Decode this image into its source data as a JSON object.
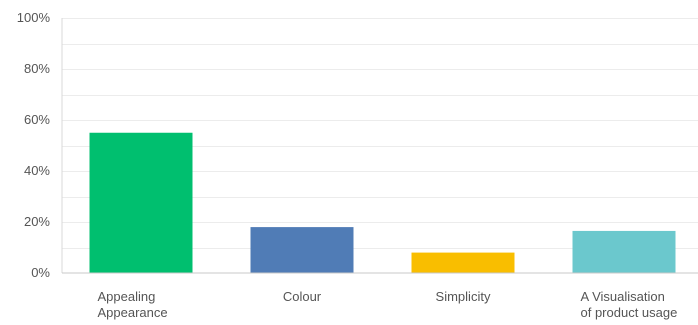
{
  "chart_data": {
    "type": "bar",
    "categories": [
      [
        "Appealing",
        "Appearance"
      ],
      [
        "Colour"
      ],
      [
        "Simplicity"
      ],
      [
        "A Visualisation",
        "of product usage"
      ]
    ],
    "values": [
      55,
      18,
      8,
      16.5
    ],
    "colors": [
      "#00bf6f",
      "#507cb6",
      "#f9be00",
      "#6bc8cd"
    ],
    "ylim": [
      0,
      100
    ],
    "yticks": [
      0,
      20,
      40,
      60,
      80,
      100
    ],
    "ytick_labels": [
      "0%",
      "20%",
      "40%",
      "60%",
      "80%",
      "100%"
    ],
    "grid": true,
    "legend": "none",
    "title": "",
    "xlabel": "",
    "ylabel": ""
  }
}
